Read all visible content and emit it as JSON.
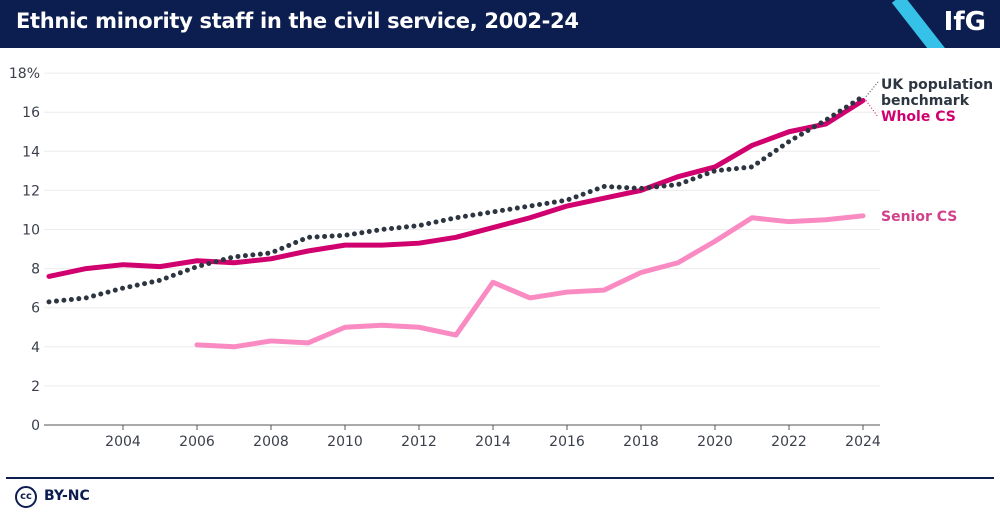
{
  "header": {
    "title": "Ethnic minority staff in the civil service, 2002-24",
    "logo": "IfG"
  },
  "footer": {
    "license_icon": "cc",
    "license": "BY-NC"
  },
  "colors": {
    "header_bg": "#0c1d50",
    "whole_cs": "#d1006f",
    "senior_cs": "#f98bc2",
    "benchmark": "#2d3541",
    "logo_stripe": "#35c1e8"
  },
  "chart_data": {
    "type": "line",
    "title": "Ethnic minority staff in the civil service, 2002-24",
    "xlabel": "",
    "ylabel": "",
    "ylim": [
      0,
      18
    ],
    "xlim": [
      2002,
      2024
    ],
    "y_ticks": [
      "0",
      "2",
      "4",
      "6",
      "8",
      "10",
      "12",
      "14",
      "16",
      "18%"
    ],
    "x_ticks": [
      "2004",
      "2006",
      "2008",
      "2010",
      "2012",
      "2014",
      "2016",
      "2018",
      "2020",
      "2022",
      "2024"
    ],
    "grid": "horizontal",
    "legend": "direct labels at right",
    "series": [
      {
        "name": "UK population benchmark",
        "style": "dotted",
        "x": [
          2002,
          2003,
          2004,
          2005,
          2006,
          2007,
          2008,
          2009,
          2010,
          2011,
          2012,
          2013,
          2014,
          2015,
          2016,
          2017,
          2018,
          2019,
          2020,
          2021,
          2022,
          2023,
          2024
        ],
        "values": [
          6.3,
          6.5,
          7.0,
          7.4,
          8.1,
          8.6,
          8.8,
          9.6,
          9.7,
          10.0,
          10.2,
          10.6,
          10.9,
          11.2,
          11.5,
          12.2,
          12.1,
          12.3,
          13.0,
          13.2,
          14.5,
          15.6,
          16.8
        ]
      },
      {
        "name": "Whole CS",
        "style": "solid",
        "x": [
          2002,
          2003,
          2004,
          2005,
          2006,
          2007,
          2008,
          2009,
          2010,
          2011,
          2012,
          2013,
          2014,
          2015,
          2016,
          2017,
          2018,
          2019,
          2020,
          2021,
          2022,
          2023,
          2024
        ],
        "values": [
          7.6,
          8.0,
          8.2,
          8.1,
          8.4,
          8.3,
          8.5,
          8.9,
          9.2,
          9.2,
          9.3,
          9.6,
          10.1,
          10.6,
          11.2,
          11.6,
          12.0,
          12.7,
          13.2,
          14.3,
          15.0,
          15.4,
          16.6
        ]
      },
      {
        "name": "Senior CS",
        "style": "solid",
        "x": [
          2006,
          2007,
          2008,
          2009,
          2010,
          2011,
          2012,
          2013,
          2014,
          2015,
          2016,
          2017,
          2018,
          2019,
          2020,
          2021,
          2022,
          2023,
          2024
        ],
        "values": [
          4.1,
          4.0,
          4.3,
          4.2,
          5.0,
          5.1,
          5.0,
          4.6,
          7.3,
          6.5,
          6.8,
          6.9,
          7.8,
          8.3,
          9.4,
          10.6,
          10.4,
          10.5,
          10.7
        ]
      }
    ]
  }
}
